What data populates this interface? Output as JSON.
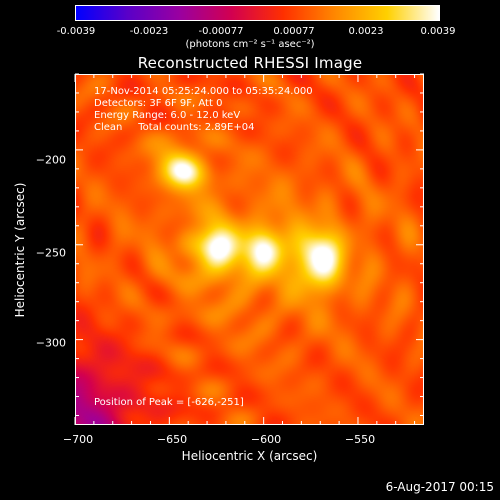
{
  "colorbar": {
    "tick_labels": [
      "-0.0039",
      "-0.0023",
      "-0.00077",
      "0.00077",
      "0.0023",
      "0.0039"
    ],
    "unit_label": "(photons cm⁻² s⁻¹ asec⁻²)",
    "range": [
      -0.0039,
      0.0039
    ],
    "colors": [
      "#0000ff",
      "#5a00c8",
      "#9a00a0",
      "#d20050",
      "#ff3000",
      "#ff8800",
      "#ffd000",
      "#ffffff"
    ]
  },
  "annotations": {
    "line1": "17-Nov-2014 05:25:24.000 to 05:35:24.000",
    "line2": "Detectors: 3F 6F 9F, Att 0",
    "line3": "Energy Range: 6.0 - 12.0 keV",
    "line4": "Clean     Total counts: 2.89E+04",
    "peak": "Position of Peak = [-626,-251]"
  },
  "footer": {
    "timestamp": "6-Aug-2017 00:15"
  },
  "chart_data": {
    "type": "heatmap",
    "title": "Reconstructed RHESSI Image",
    "xlabel": "Heliocentric X (arcsec)",
    "ylabel": "Heliocentric Y (arcsec)",
    "xlim": [
      -700,
      -515
    ],
    "ylim": [
      -345,
      -160
    ],
    "x_tick_labels": [
      "−700",
      "−650",
      "−600",
      "−550"
    ],
    "x_ticks": [
      -700,
      -650,
      -600,
      -550
    ],
    "y_tick_labels": [
      "−200",
      "−250",
      "−300"
    ],
    "y_ticks": [
      -200,
      -250,
      -300
    ],
    "peak": [
      -626,
      -251
    ],
    "sources": [
      {
        "x": -626,
        "y": -251,
        "value": 0.0037
      },
      {
        "x": -598,
        "y": -252,
        "value": 0.0031
      },
      {
        "x": -570,
        "y": -253,
        "value": 0.003
      },
      {
        "x": -570,
        "y": -265,
        "value": 0.0026
      },
      {
        "x": -640,
        "y": -212,
        "value": 0.0027
      },
      {
        "x": -648,
        "y": -206,
        "value": 0.0022
      },
      {
        "x": -612,
        "y": -262,
        "value": 0.0015
      }
    ]
  }
}
